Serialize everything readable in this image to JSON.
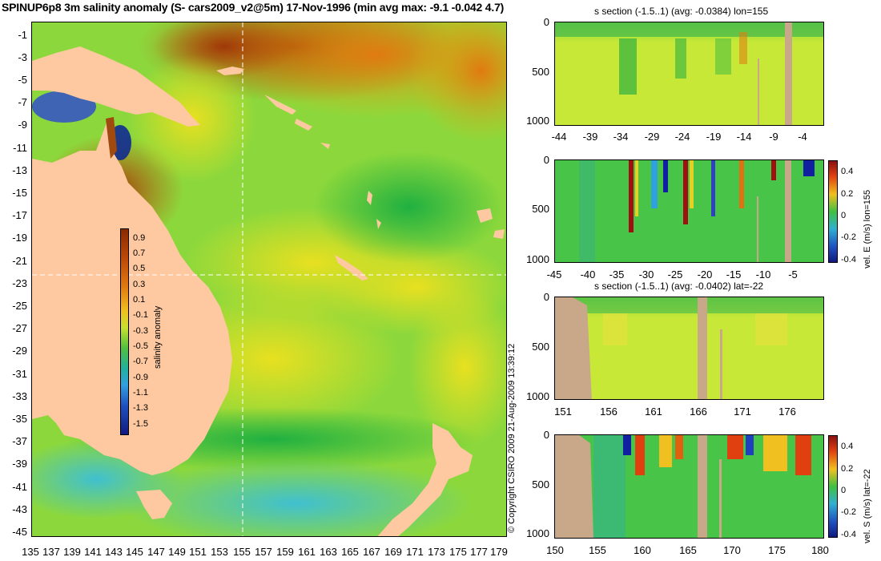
{
  "title": "SPINUP6p8 3m salinity anomaly (S- cars2009_v2@5m) 17-Nov-1996 (min avg max: -9.1 -0.042 4.7)",
  "map": {
    "lat_ticks": [
      "-1",
      "-3",
      "-5",
      "-7",
      "-9",
      "-11",
      "-13",
      "-15",
      "-17",
      "-19",
      "-21",
      "-23",
      "-25",
      "-27",
      "-29",
      "-31",
      "-33",
      "-35",
      "-37",
      "-39",
      "-41",
      "-43",
      "-45"
    ],
    "lon_ticks": [
      "135",
      "137",
      "139",
      "141",
      "143",
      "145",
      "147",
      "149",
      "151",
      "153",
      "155",
      "157",
      "159",
      "161",
      "163",
      "165",
      "167",
      "169",
      "171",
      "173",
      "175",
      "177",
      "179"
    ],
    "colorbar": {
      "label": "salinity anomaly",
      "ticks": [
        "0.9",
        "0.7",
        "0.5",
        "0.3",
        "0.1",
        "-0.1",
        "-0.3",
        "-0.5",
        "-0.7",
        "-0.9",
        "-1.1",
        "-1.3",
        "-1.5"
      ]
    },
    "section_lon": 155,
    "section_lat": -22,
    "colors": {
      "ocean": "#7bd34a",
      "land": "#fec8a0"
    }
  },
  "copyright": "© Copyright CSIRO 2009   21-Aug-2009 13:39:12",
  "panels": [
    {
      "title": "s section (-1.5..1) (avg: -0.0384) lon=155",
      "yticks": [
        "0",
        "500",
        "1000"
      ],
      "xticks": [
        "-44",
        "-39",
        "-34",
        "-29",
        "-24",
        "-19",
        "-14",
        "-9",
        "-4"
      ]
    },
    {
      "title": "",
      "yticks": [
        "0",
        "500",
        "1000"
      ],
      "xticks": [
        "-45",
        "-40",
        "-35",
        "-30",
        "-25",
        "-20",
        "-15",
        "-10",
        "-5"
      ],
      "colorbar_label": "vel. E (m/s) lon=155",
      "colorbar_ticks": [
        "0.4",
        "0.2",
        "0",
        "-0.2",
        "-0.4"
      ]
    },
    {
      "title": "s section (-1.5..1) (avg: -0.0402) lat=-22",
      "yticks": [
        "0",
        "500",
        "1000"
      ],
      "xticks": [
        "151",
        "156",
        "161",
        "166",
        "171",
        "176"
      ]
    },
    {
      "title": "",
      "yticks": [
        "0",
        "500",
        "1000"
      ],
      "xticks": [
        "150",
        "155",
        "160",
        "165",
        "170",
        "175",
        "180"
      ],
      "colorbar_label": "vel. S (m/s) lat=-22",
      "colorbar_ticks": [
        "0.4",
        "0.2",
        "0",
        "-0.2",
        "-0.4"
      ]
    }
  ]
}
